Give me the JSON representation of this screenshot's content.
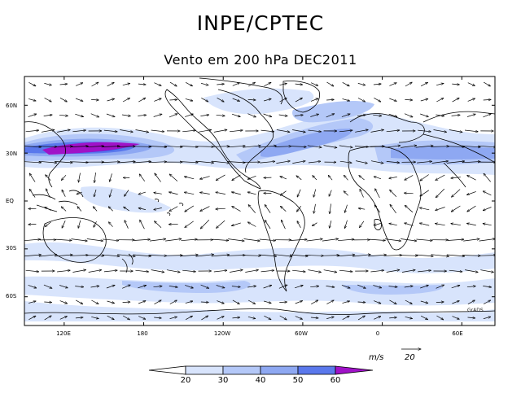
{
  "header": {
    "title": "INPE/CPTEC",
    "subtitle": "Vento em 200 hPa DEC2011"
  },
  "axes": {
    "lat_labels": [
      "60N",
      "30N",
      "EQ",
      "30S",
      "60S"
    ],
    "lat_values": [
      60,
      30,
      0,
      -30,
      -60
    ],
    "lon_labels": [
      "120E",
      "180",
      "120W",
      "60W",
      "0",
      "60E"
    ],
    "lon_values": [
      120,
      180,
      240,
      300,
      360,
      420
    ],
    "lon_range": [
      90,
      445
    ],
    "lat_range": [
      -78,
      78
    ]
  },
  "legend": {
    "units": "m/s",
    "reference_vector": "20",
    "levels": [
      "20",
      "30",
      "40",
      "50",
      "60"
    ],
    "level_values": [
      20,
      30,
      40,
      50,
      60
    ],
    "colors": [
      "#ffffff",
      "#d8e4fc",
      "#b4c8f8",
      "#8ea8f2",
      "#5a78ec",
      "#3c50e4",
      "#a012c8"
    ]
  },
  "credit": "GrADS"
}
